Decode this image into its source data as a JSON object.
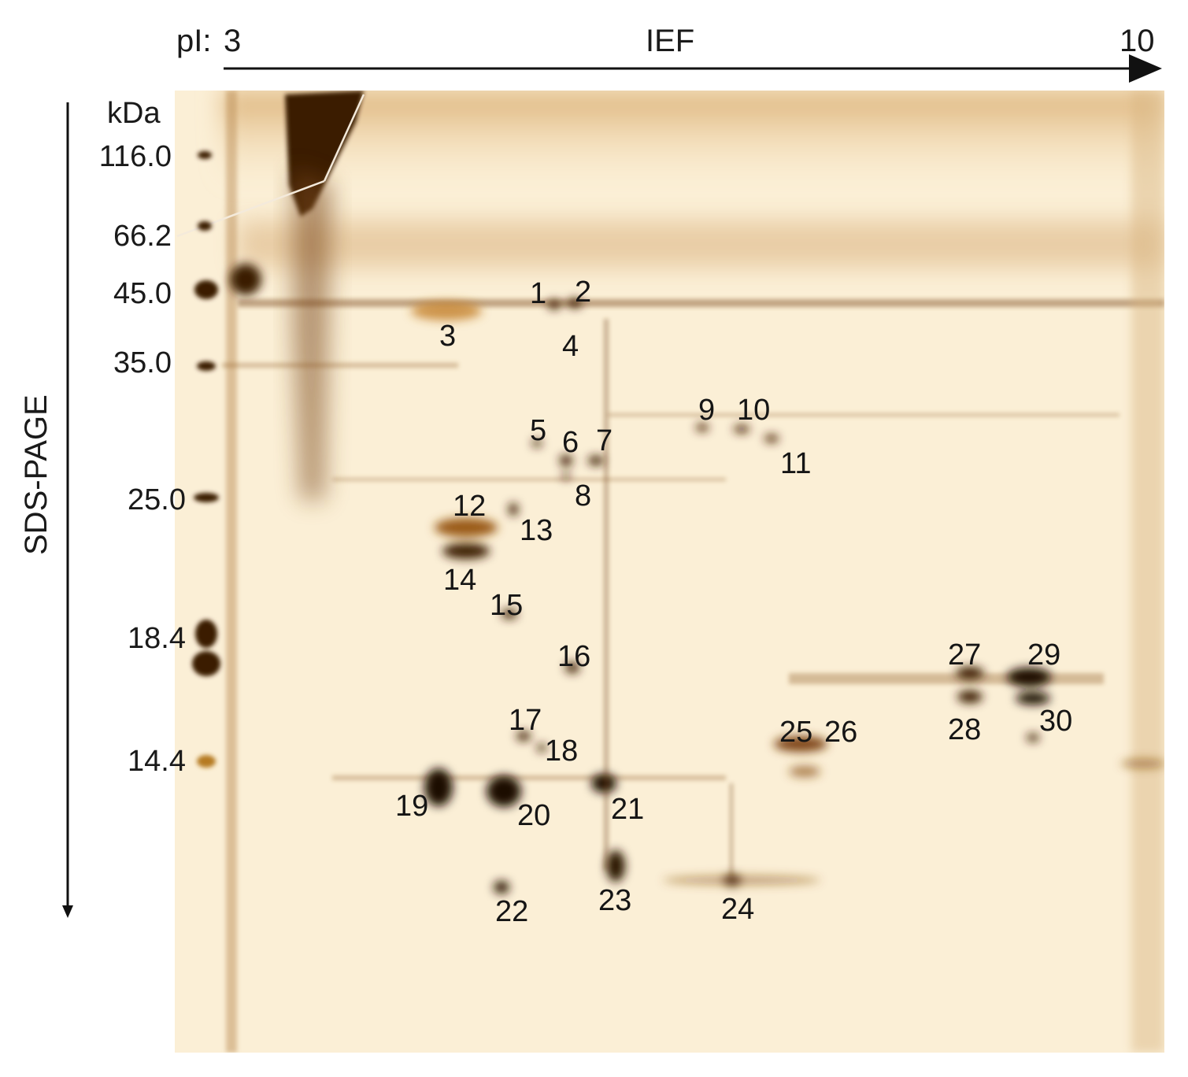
{
  "ief_axis": {
    "pi_label": "pI:",
    "start": "3",
    "title": "IEF",
    "end": "10"
  },
  "sds_axis": {
    "title": "SDS-PAGE",
    "unit": "kDa",
    "markers": [
      "116.0",
      "66.2",
      "45.0",
      "35.0",
      "25.0",
      "18.4",
      "14.4"
    ]
  },
  "spots": [
    "1",
    "2",
    "3",
    "4",
    "5",
    "6",
    "7",
    "8",
    "9",
    "10",
    "11",
    "12",
    "13",
    "14",
    "15",
    "16",
    "17",
    "18",
    "19",
    "20",
    "21",
    "22",
    "23",
    "24",
    "25",
    "26",
    "27",
    "28",
    "29",
    "30"
  ],
  "colors": {
    "gel_background": "#fbefd6",
    "stain_dark": "#2a1305",
    "stain_brown": "#8a5218",
    "stain_amber": "#c07a22"
  }
}
